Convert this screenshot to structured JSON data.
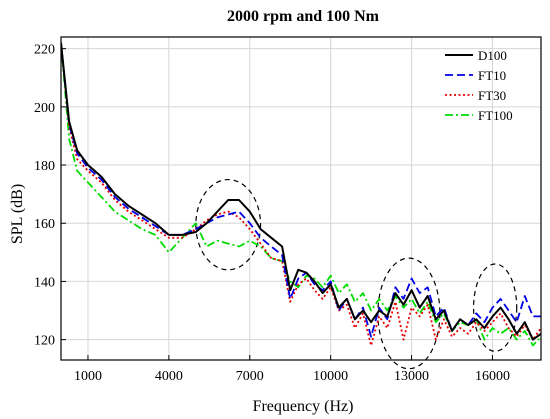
{
  "chart_data": {
    "type": "line",
    "title": "2000 rpm and 100 Nm",
    "xlabel": "Frequency (Hz)",
    "ylabel": "SPL (dB)",
    "xlim": [
      0,
      17800
    ],
    "ylim": [
      113,
      224
    ],
    "xticks": [
      1000,
      4000,
      7000,
      10000,
      13000,
      16000
    ],
    "yticks": [
      120,
      140,
      160,
      180,
      200,
      220
    ],
    "grid": true,
    "legend_position": "top-right",
    "series": [
      {
        "name": "D100",
        "color": "#000000",
        "dash": "solid",
        "x": [
          0,
          300,
          600,
          1000,
          1500,
          2000,
          2500,
          3000,
          3500,
          4000,
          4500,
          5000,
          5400,
          5800,
          6200,
          6600,
          7000,
          7400,
          7800,
          8200,
          8500,
          8800,
          9100,
          9400,
          9700,
          10000,
          10300,
          10600,
          10900,
          11200,
          11500,
          11800,
          12100,
          12400,
          12700,
          13000,
          13300,
          13600,
          13900,
          14200,
          14500,
          14800,
          15100,
          15400,
          15700,
          16000,
          16300,
          16600,
          16900,
          17200,
          17500,
          17800
        ],
        "values": [
          222,
          195,
          185,
          180,
          176,
          170,
          166,
          163,
          160,
          156,
          156,
          157,
          160,
          164,
          168,
          168,
          164,
          158,
          155,
          152,
          137,
          144,
          143,
          140,
          136,
          139,
          131,
          134,
          127,
          130,
          126,
          130,
          128,
          136,
          132,
          137,
          131,
          135,
          127,
          130,
          123,
          127,
          125,
          127,
          124,
          128,
          131,
          127,
          122,
          126,
          120,
          122
        ]
      },
      {
        "name": "FT10",
        "color": "#0000e6",
        "dash": "dashed",
        "x": [
          0,
          300,
          600,
          1000,
          1500,
          2000,
          2500,
          3000,
          3500,
          4000,
          4500,
          5000,
          5400,
          5800,
          6200,
          6600,
          7000,
          7400,
          7800,
          8200,
          8500,
          8800,
          9100,
          9400,
          9700,
          10000,
          10300,
          10600,
          10900,
          11200,
          11500,
          11800,
          12100,
          12400,
          12700,
          13000,
          13300,
          13600,
          13900,
          14200,
          14500,
          14800,
          15100,
          15400,
          15700,
          16000,
          16300,
          16600,
          16900,
          17200,
          17500,
          17800
        ],
        "values": [
          222,
          194,
          184,
          179,
          175,
          169,
          165,
          162,
          159,
          156,
          156,
          158,
          160,
          162,
          163,
          164,
          160,
          155,
          152,
          149,
          134,
          141,
          143,
          139,
          137,
          140,
          130,
          134,
          127,
          131,
          121,
          131,
          127,
          138,
          134,
          141,
          136,
          138,
          128,
          131,
          123,
          127,
          125,
          129,
          126,
          131,
          134,
          130,
          126,
          135,
          128,
          128
        ]
      },
      {
        "name": "FT30",
        "color": "#e60000",
        "dash": "dotted",
        "x": [
          0,
          300,
          600,
          1000,
          1500,
          2000,
          2500,
          3000,
          3500,
          4000,
          4500,
          5000,
          5400,
          5800,
          6200,
          6600,
          7000,
          7400,
          7800,
          8200,
          8500,
          8800,
          9100,
          9400,
          9700,
          10000,
          10300,
          10600,
          10900,
          11200,
          11500,
          11800,
          12100,
          12400,
          12700,
          13000,
          13300,
          13600,
          13900,
          14200,
          14500,
          14800,
          15100,
          15400,
          15700,
          16000,
          16300,
          16600,
          16900,
          17200,
          17500,
          17800
        ],
        "values": [
          222,
          193,
          182,
          178,
          174,
          168,
          164,
          161,
          158,
          155,
          155,
          158,
          161,
          163,
          164,
          162,
          158,
          153,
          148,
          147,
          133,
          139,
          141,
          137,
          134,
          138,
          130,
          132,
          124,
          129,
          118,
          128,
          124,
          133,
          120,
          131,
          128,
          132,
          120,
          127,
          121,
          124,
          122,
          126,
          123,
          126,
          129,
          124,
          121,
          125,
          120,
          124
        ]
      },
      {
        "name": "FT100",
        "color": "#00dd00",
        "dash": "dashdot",
        "x": [
          0,
          300,
          600,
          1000,
          1500,
          2000,
          2500,
          3000,
          3500,
          4000,
          4500,
          5000,
          5400,
          5800,
          6200,
          6600,
          7000,
          7400,
          7800,
          8200,
          8500,
          8800,
          9100,
          9400,
          9700,
          10000,
          10300,
          10600,
          10900,
          11200,
          11500,
          11800,
          12100,
          12400,
          12700,
          13000,
          13300,
          13600,
          13900,
          14200,
          14500,
          14800,
          15100,
          15400,
          15700,
          16000,
          16300,
          16600,
          16900,
          17200,
          17500,
          17800
        ],
        "values": [
          222,
          189,
          178,
          174,
          169,
          164,
          161,
          158,
          156,
          150,
          155,
          160,
          152,
          154,
          153,
          152,
          154,
          152,
          148,
          147,
          140,
          138,
          142,
          141,
          138,
          142,
          136,
          139,
          133,
          136,
          130,
          134,
          130,
          135,
          131,
          134,
          129,
          133,
          126,
          129,
          123,
          126,
          125,
          127,
          120,
          124,
          122,
          124,
          120,
          123,
          118,
          121
        ]
      }
    ]
  }
}
